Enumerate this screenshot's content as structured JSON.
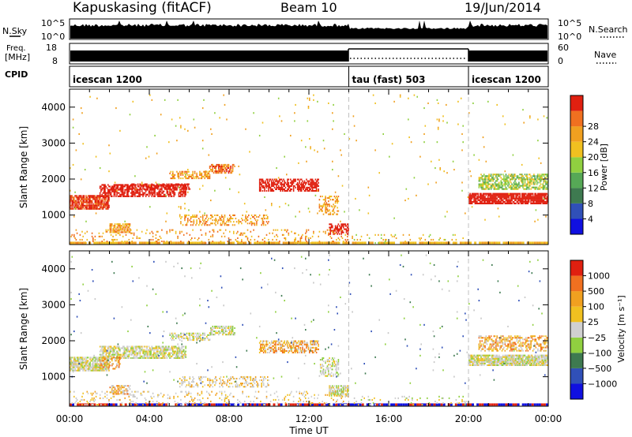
{
  "header": {
    "station": "Kapuskasing (fitACF)",
    "beam": "Beam 10",
    "date": "19/Jun/2014"
  },
  "side_labels": {
    "nsky": "N.Sky",
    "nsky_ticks": [
      "10^5",
      "10^0"
    ],
    "nsearch": "N.Search",
    "freq": "Freq.",
    "freq_unit": "[MHz]",
    "freq_ticks": [
      "18",
      "8"
    ],
    "nave_ticks": [
      "60",
      "0"
    ],
    "nave": "Nave",
    "cpid": "CPID"
  },
  "cpid_segments": [
    {
      "label": "icescan 1200",
      "start": 0,
      "end": 14
    },
    {
      "label": "tau (fast) 503",
      "start": 14,
      "end": 20
    },
    {
      "label": "icescan 1200",
      "start": 20,
      "end": 24
    }
  ],
  "colors": {
    "power": [
      "#1010e0",
      "#3050b8",
      "#3e7a50",
      "#56a856",
      "#90d040",
      "#f0c020",
      "#f0a020",
      "#f07020",
      "#e02010"
    ],
    "velocity": [
      "#e02010",
      "#f07020",
      "#f0a020",
      "#f0c020",
      "#d0d0d0",
      "#90d040",
      "#3e7a50",
      "#3050b8",
      "#1010e0"
    ],
    "ground": "#c8c8c8"
  },
  "chart_data": [
    {
      "type": "heatmap",
      "name": "power",
      "xlabel": "",
      "ylabel": "Slant Range [km]",
      "yticks": [
        "1000",
        "2000",
        "3000",
        "4000"
      ],
      "ylim": [
        180,
        4500
      ],
      "xlim": [
        0,
        24
      ],
      "colorbar_label": "Power [dB]",
      "colorbar_ticks": [
        "4",
        "8",
        "12",
        "16",
        "20",
        "24",
        "28"
      ],
      "colorbar_range": [
        0,
        30
      ],
      "mode_boundaries": [
        14,
        20
      ],
      "echo_regions": [
        {
          "t": [
            0.0,
            2.0
          ],
          "r": [
            1150,
            1550
          ],
          "level": 8,
          "density": 0.8
        },
        {
          "t": [
            1.5,
            5.8
          ],
          "r": [
            1500,
            1850
          ],
          "level": 9,
          "density": 0.65
        },
        {
          "t": [
            3.0,
            6.0
          ],
          "r": [
            1700,
            1850
          ],
          "level": 14,
          "density": 0.4
        },
        {
          "t": [
            2.0,
            3.0
          ],
          "r": [
            500,
            750
          ],
          "level": 6,
          "density": 0.7
        },
        {
          "t": [
            5.0,
            7.0
          ],
          "r": [
            2000,
            2200
          ],
          "level": 6,
          "density": 0.5
        },
        {
          "t": [
            7.0,
            8.3
          ],
          "r": [
            2150,
            2400
          ],
          "level": 7,
          "density": 0.6
        },
        {
          "t": [
            5.5,
            10.0
          ],
          "r": [
            700,
            1000
          ],
          "level": 6,
          "density": 0.3
        },
        {
          "t": [
            9.5,
            12.5
          ],
          "r": [
            1650,
            2000
          ],
          "level": 9,
          "density": 0.6
        },
        {
          "t": [
            12.5,
            13.5
          ],
          "r": [
            1000,
            1500
          ],
          "level": 6,
          "density": 0.4
        },
        {
          "t": [
            13.0,
            14.0
          ],
          "r": [
            450,
            750
          ],
          "level": 11,
          "density": 0.5
        },
        {
          "t": [
            0.0,
            14.0
          ],
          "r": [
            200,
            600
          ],
          "level": 6,
          "density": 0.12
        },
        {
          "t": [
            14.0,
            20.0
          ],
          "r": [
            200,
            450
          ],
          "level": 5,
          "density": 0.06
        },
        {
          "t": [
            20.0,
            24.0
          ],
          "r": [
            1300,
            1600
          ],
          "level": 9,
          "density": 0.85
        },
        {
          "t": [
            20.5,
            24.0
          ],
          "r": [
            1700,
            2150
          ],
          "level": 4,
          "density": 0.6
        },
        {
          "t": [
            0.0,
            24.0
          ],
          "r": [
            800,
            4400
          ],
          "level": 5,
          "density": 0.008
        }
      ]
    },
    {
      "type": "heatmap",
      "name": "velocity",
      "xlabel": "Time UT",
      "ylabel": "Slant Range [km]",
      "xticks": [
        "00:00",
        "04:00",
        "08:00",
        "12:00",
        "16:00",
        "20:00",
        "00:00"
      ],
      "yticks": [
        "1000",
        "2000",
        "3000",
        "4000"
      ],
      "ylim": [
        180,
        4500
      ],
      "xlim": [
        0,
        24
      ],
      "colorbar_label": "Velocity [m s⁻¹]",
      "colorbar_ticks": [
        "1000",
        "500",
        "100",
        "25",
        "−25",
        "−100",
        "−500",
        "−1000"
      ],
      "colorbar_range": [
        -1200,
        1200
      ],
      "mode_boundaries": [
        14,
        20
      ],
      "echo_regions": [
        {
          "t": [
            0.0,
            2.0
          ],
          "r": [
            1150,
            1550
          ],
          "level": 4,
          "density": 0.8
        },
        {
          "t": [
            1.5,
            5.8
          ],
          "r": [
            1500,
            1850
          ],
          "level": 4,
          "density": 0.65
        },
        {
          "t": [
            1.5,
            2.5
          ],
          "r": [
            1200,
            1550
          ],
          "level": 2,
          "density": 0.4
        },
        {
          "t": [
            2.0,
            3.0
          ],
          "r": [
            500,
            750
          ],
          "level": 2,
          "density": 0.6
        },
        {
          "t": [
            5.0,
            7.0
          ],
          "r": [
            2000,
            2200
          ],
          "level": 4,
          "density": 0.5
        },
        {
          "t": [
            7.0,
            8.3
          ],
          "r": [
            2150,
            2400
          ],
          "level": 4,
          "density": 0.6
        },
        {
          "t": [
            5.5,
            10.0
          ],
          "r": [
            700,
            1000
          ],
          "level": 3,
          "density": 0.3
        },
        {
          "t": [
            9.5,
            12.5
          ],
          "r": [
            1650,
            2000
          ],
          "level": 2,
          "density": 0.5
        },
        {
          "t": [
            12.5,
            13.5
          ],
          "r": [
            1000,
            1500
          ],
          "level": 4,
          "density": 0.4
        },
        {
          "t": [
            13.0,
            14.0
          ],
          "r": [
            450,
            750
          ],
          "level": 4,
          "density": 0.7
        },
        {
          "t": [
            0.0,
            14.0
          ],
          "r": [
            200,
            600
          ],
          "level": 3,
          "density": 0.12
        },
        {
          "t": [
            14.0,
            20.0
          ],
          "r": [
            200,
            450
          ],
          "level": 4,
          "density": 0.06
        },
        {
          "t": [
            20.0,
            24.0
          ],
          "r": [
            1300,
            1600
          ],
          "level": 4,
          "density": 0.85
        },
        {
          "t": [
            20.5,
            24.0
          ],
          "r": [
            1700,
            2150
          ],
          "level": 2,
          "density": 0.4
        },
        {
          "t": [
            0.0,
            24.0
          ],
          "r": [
            800,
            4400
          ],
          "level": 6,
          "density": 0.008
        }
      ]
    }
  ]
}
